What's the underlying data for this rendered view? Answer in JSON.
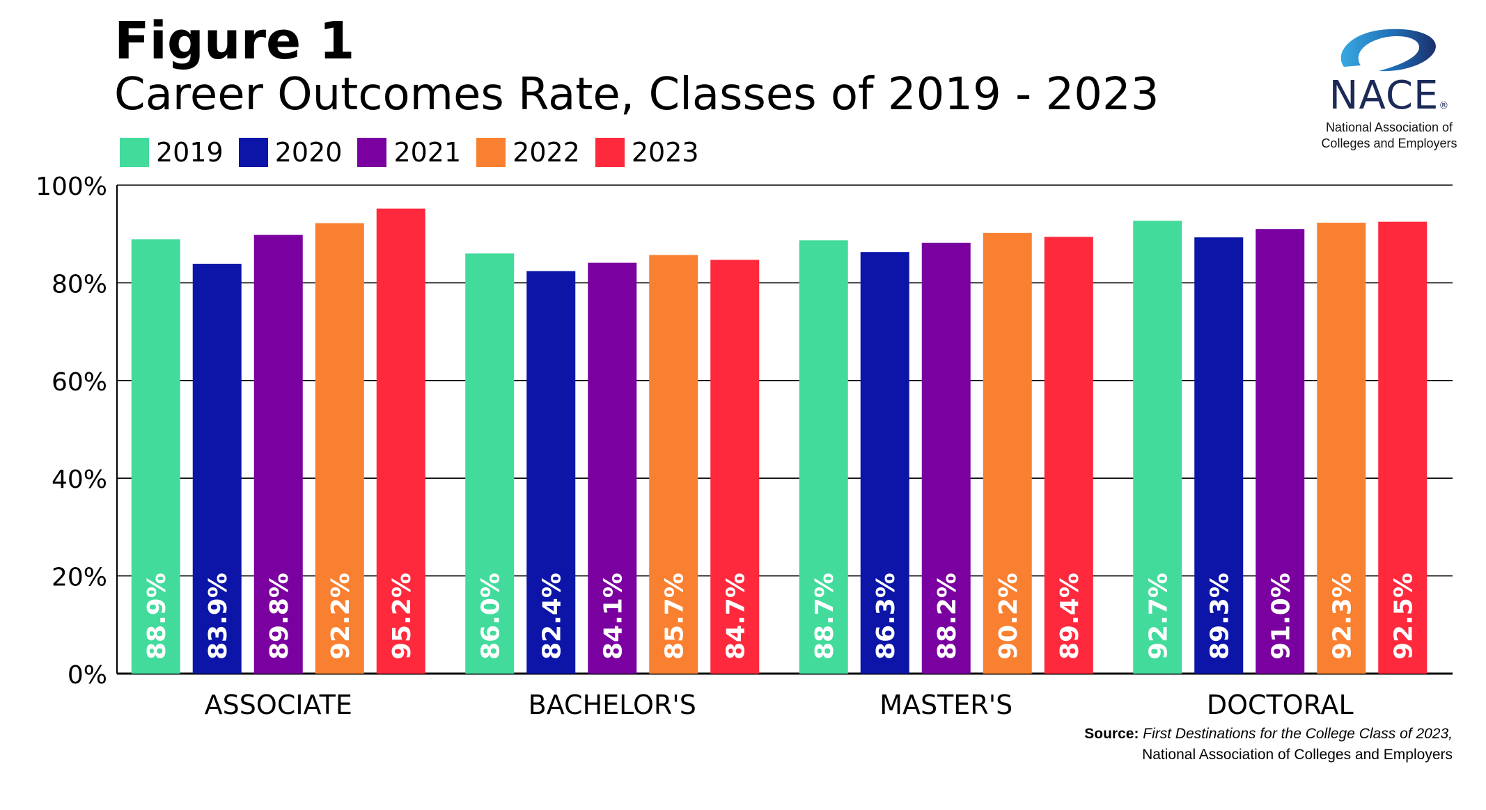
{
  "figure_label": "Figure 1",
  "colors": {
    "2019": "#42db9c",
    "2020": "#0c15a8",
    "2021": "#7a00a0",
    "2022": "#f98030",
    "2023": "#fe293c",
    "bar_label": "#ffffff",
    "grid": "#000000"
  },
  "logo": {
    "wordmark": "NACE",
    "registered": "®",
    "tagline_line1": "National Association of",
    "tagline_line2": "Colleges and Employers"
  },
  "source": {
    "label": "Source:",
    "title": "First Destinations for the College Class of 2023,",
    "org": "National Association of Colleges and Employers"
  },
  "chart_data": {
    "type": "bar",
    "title": "Career Outcomes Rate, Classes of 2019 - 2023",
    "xlabel": "",
    "ylabel": "",
    "ylim": [
      0,
      100
    ],
    "yticks": [
      0,
      20,
      40,
      60,
      80,
      100
    ],
    "ytick_labels": [
      "0%",
      "20%",
      "40%",
      "60%",
      "80%",
      "100%"
    ],
    "grid": true,
    "legend_position": "top-left",
    "categories": [
      "ASSOCIATE",
      "BACHELOR'S",
      "MASTER'S",
      "DOCTORAL"
    ],
    "series": [
      {
        "name": "2019",
        "values": [
          88.9,
          86.0,
          88.7,
          92.7
        ],
        "labels": [
          "88.9%",
          "86.0%",
          "88.7%",
          "92.7%"
        ]
      },
      {
        "name": "2020",
        "values": [
          83.9,
          82.4,
          86.3,
          89.3
        ],
        "labels": [
          "83.9%",
          "82.4%",
          "86.3%",
          "89.3%"
        ]
      },
      {
        "name": "2021",
        "values": [
          89.8,
          84.1,
          88.2,
          91.0
        ],
        "labels": [
          "89.8%",
          "84.1%",
          "88.2%",
          "91.0%"
        ]
      },
      {
        "name": "2022",
        "values": [
          92.2,
          85.7,
          90.2,
          92.3
        ],
        "labels": [
          "92.2%",
          "85.7%",
          "90.2%",
          "92.3%"
        ]
      },
      {
        "name": "2023",
        "values": [
          95.2,
          84.7,
          89.4,
          92.5
        ],
        "labels": [
          "95.2%",
          "84.7%",
          "89.4%",
          "92.5%"
        ]
      }
    ]
  }
}
